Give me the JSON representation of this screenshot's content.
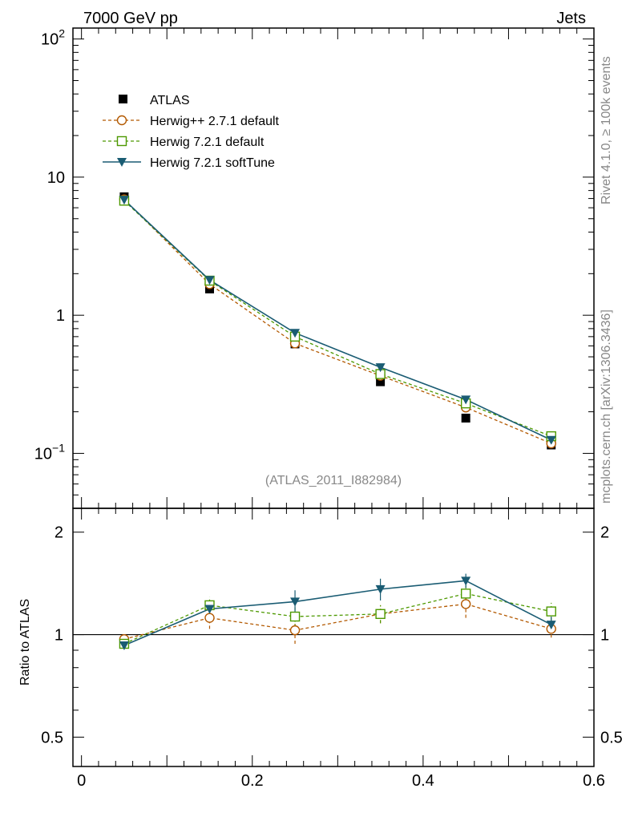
{
  "header": {
    "left_title": "7000 GeV pp",
    "right_title": "Jets"
  },
  "side": {
    "rivet": "Rivet 4.1.0, ≥ 100k events",
    "mcplots": "mcplots.cern.ch [arXiv:1306.3436]"
  },
  "watermark": "(ATLAS_2011_I882984)",
  "chart_data": [
    {
      "type": "line",
      "yscale": "log",
      "xlim": [
        -0.01,
        0.6
      ],
      "ylim": [
        0.04,
        120
      ],
      "y_ticks": [
        {
          "value": 0.1,
          "label": "10",
          "exp": "−1"
        },
        {
          "value": 1,
          "label": "1",
          "exp": ""
        },
        {
          "value": 10,
          "label": "10",
          "exp": ""
        },
        {
          "value": 100,
          "label": "10",
          "exp": "2"
        }
      ],
      "legend_position": "top-left",
      "x": [
        0.05,
        0.15,
        0.25,
        0.35,
        0.45,
        0.55
      ],
      "series": [
        {
          "name": "ATLAS",
          "color": "#000000",
          "style": "square-filled",
          "values": [
            7.2,
            1.55,
            0.62,
            0.33,
            0.18,
            0.115
          ]
        },
        {
          "name": "Herwig++ 2.7.1 default",
          "color": "#b35900",
          "style": "circle-open-dashed",
          "values": [
            6.9,
            1.68,
            0.625,
            0.365,
            0.215,
            0.118
          ]
        },
        {
          "name": "Herwig 7.2.1 default",
          "color": "#4d9900",
          "style": "square-open-dashed",
          "values": [
            6.75,
            1.78,
            0.7,
            0.375,
            0.23,
            0.133
          ]
        },
        {
          "name": "Herwig 7.2.1 softTune",
          "color": "#1a5c73",
          "style": "triangle-down-solid",
          "values": [
            6.85,
            1.8,
            0.745,
            0.42,
            0.245,
            0.125
          ]
        }
      ]
    },
    {
      "type": "line",
      "yscale": "log",
      "ylabel": "Ratio to ATLAS",
      "xlim": [
        -0.01,
        0.6
      ],
      "ylim": [
        0.41,
        2.35
      ],
      "y_ticks": [
        {
          "value": 0.5,
          "label": "0.5"
        },
        {
          "value": 1,
          "label": "1"
        },
        {
          "value": 2,
          "label": "2"
        }
      ],
      "x_ticks": [
        {
          "value": 0,
          "label": "0"
        },
        {
          "value": 0.2,
          "label": "0.2"
        },
        {
          "value": 0.4,
          "label": "0.4"
        },
        {
          "value": 0.6,
          "label": "0.6"
        }
      ],
      "reference_line": 1,
      "x": [
        0.05,
        0.15,
        0.25,
        0.35,
        0.45,
        0.55
      ],
      "series": [
        {
          "name": "Herwig++ 2.7.1 default",
          "color": "#b35900",
          "values": [
            0.97,
            1.12,
            1.03,
            1.15,
            1.23,
            1.04
          ],
          "errors": [
            0.015,
            0.08,
            0.09,
            0.07,
            0.11,
            0.06
          ]
        },
        {
          "name": "Herwig 7.2.1 default",
          "color": "#4d9900",
          "values": [
            0.94,
            1.22,
            1.13,
            1.15,
            1.32,
            1.17
          ],
          "errors": [
            0.015,
            0.07,
            0.08,
            0.07,
            0.1,
            0.07
          ]
        },
        {
          "name": "Herwig 7.2.1 softTune",
          "color": "#1a5c73",
          "values": [
            0.93,
            1.19,
            1.25,
            1.36,
            1.44,
            1.07
          ],
          "errors": [
            0.015,
            0.06,
            0.1,
            0.1,
            0.07,
            0.06
          ]
        }
      ]
    }
  ]
}
